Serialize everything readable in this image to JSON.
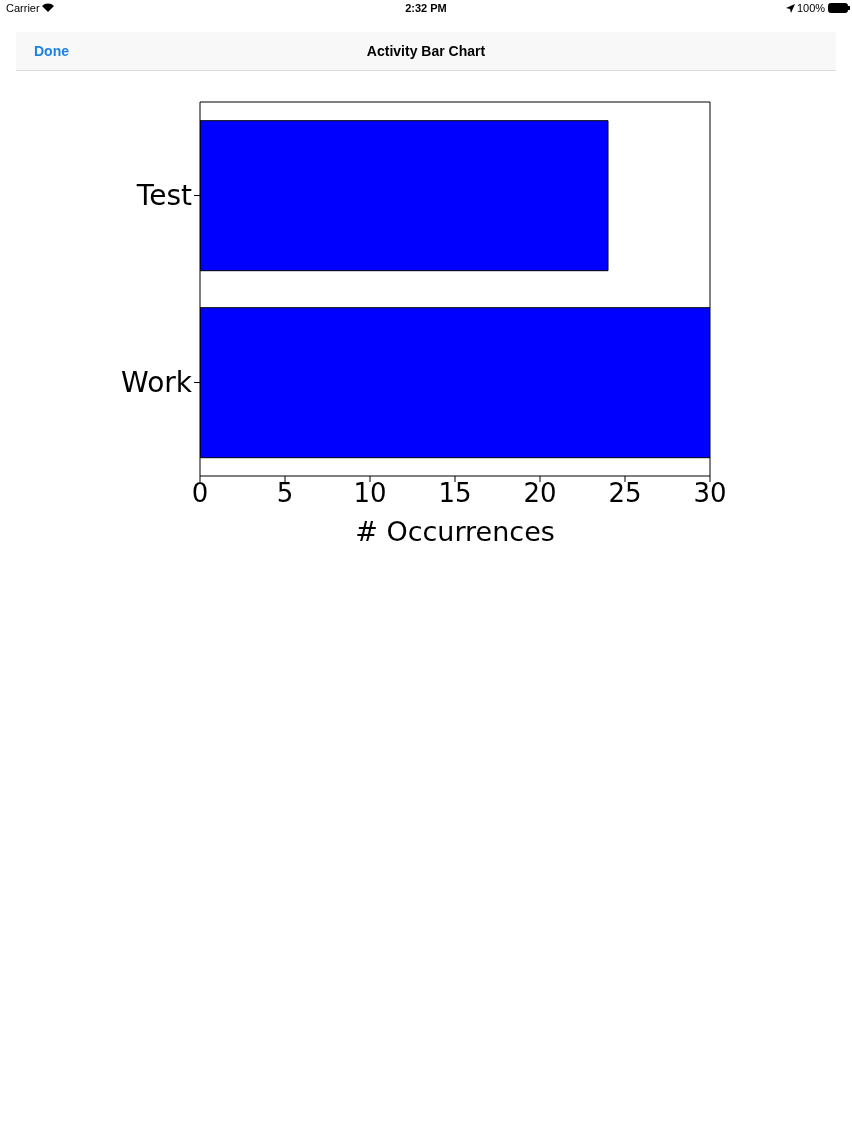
{
  "chart_data": {
    "type": "bar",
    "orientation": "horizontal",
    "title": "Activity Bar Chart",
    "categories": [
      "Test",
      "Work"
    ],
    "values": [
      24,
      30
    ],
    "color": "#0000ff",
    "xlabel": "# Occurrences",
    "xlim": [
      0,
      30
    ],
    "xticks": [
      0,
      5,
      10,
      15,
      20,
      25,
      30
    ],
    "grid": false,
    "annotations": [
      "Carrier",
      "2:32 PM",
      "100%",
      "Done"
    ]
  }
}
